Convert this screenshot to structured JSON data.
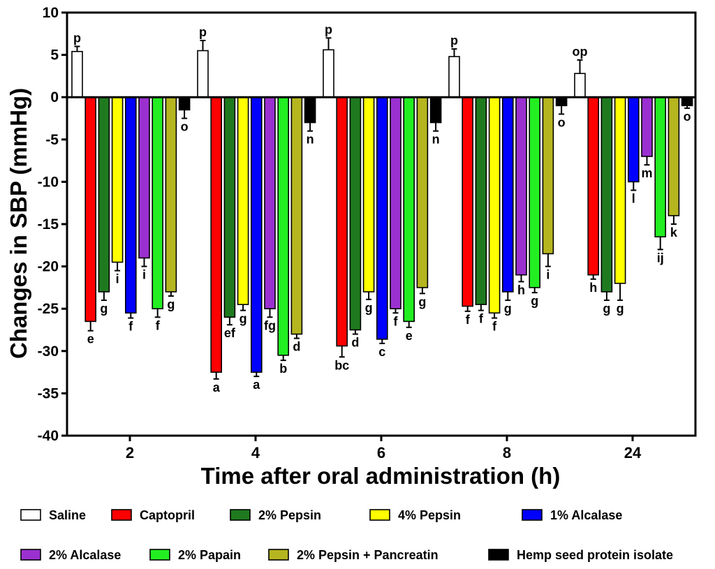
{
  "chart_data": {
    "type": "bar",
    "title": "",
    "xlabel": "Time after oral administration (h)",
    "ylabel": "Changes in SBP (mmHg)",
    "ylim": [
      -40,
      10
    ],
    "yticks": [
      10,
      5,
      0,
      -5,
      -10,
      -15,
      -20,
      -25,
      -30,
      -35,
      -40
    ],
    "categories": [
      "2",
      "4",
      "6",
      "8",
      "24"
    ],
    "series": [
      {
        "name": "Saline",
        "color": "#ffffff",
        "values": [
          5.4,
          5.5,
          5.6,
          4.8,
          2.8
        ],
        "errors": [
          0.6,
          1.2,
          1.4,
          0.9,
          1.6
        ],
        "letters": [
          "p",
          "p",
          "p",
          "p",
          "op"
        ]
      },
      {
        "name": "Captopril",
        "color": "#ff0000",
        "values": [
          -26.5,
          -32.5,
          -29.4,
          -24.7,
          -21.0
        ],
        "errors": [
          1.1,
          0.8,
          1.3,
          0.6,
          0.5
        ],
        "letters": [
          "e",
          "a",
          "bc",
          "f",
          "h"
        ]
      },
      {
        "name": "2% Pepsin",
        "color": "#1f7a1f",
        "values": [
          -23.0,
          -26.0,
          -27.5,
          -24.5,
          -23.0
        ],
        "errors": [
          1.0,
          0.9,
          0.5,
          0.7,
          1.0
        ],
        "letters": [
          "g",
          "ef",
          "d",
          "f",
          "g"
        ]
      },
      {
        "name": "4% Pepsin",
        "color": "#ffff00",
        "values": [
          -19.5,
          -24.5,
          -23.0,
          -25.5,
          -22.0
        ],
        "errors": [
          1.0,
          0.7,
          0.9,
          0.6,
          2.0
        ],
        "letters": [
          "i",
          "g",
          "g",
          "f",
          "g"
        ]
      },
      {
        "name": "1% Alcalase",
        "color": "#0000ff",
        "values": [
          -25.5,
          -32.5,
          -28.6,
          -23.0,
          -10.0
        ],
        "errors": [
          0.6,
          0.5,
          0.5,
          1.0,
          1.0
        ],
        "letters": [
          "f",
          "a",
          "c",
          "g",
          "l"
        ]
      },
      {
        "name": "2% Alcalase",
        "color": "#9b30d0",
        "values": [
          -19.0,
          -25.0,
          -25.0,
          -21.0,
          -7.0
        ],
        "errors": [
          1.0,
          1.0,
          0.5,
          0.8,
          1.0
        ],
        "letters": [
          "i",
          "fg",
          "f",
          "h",
          "m"
        ]
      },
      {
        "name": "2% Papain",
        "color": "#22ee22",
        "values": [
          -25.0,
          -30.5,
          -26.5,
          -22.5,
          -16.5
        ],
        "errors": [
          1.0,
          0.6,
          0.7,
          0.6,
          1.5
        ],
        "letters": [
          "f",
          "b",
          "e",
          "g",
          "ij"
        ]
      },
      {
        "name": "2% Pepsin + Pancreatin",
        "color": "#b5b51f",
        "values": [
          -23.0,
          -28.0,
          -22.5,
          -18.5,
          -14.0
        ],
        "errors": [
          0.5,
          0.5,
          0.7,
          1.5,
          1.0
        ],
        "letters": [
          "g",
          "d",
          "g",
          "i",
          "k"
        ]
      },
      {
        "name": "Hemp seed protein isolate",
        "color": "#000000",
        "values": [
          -1.5,
          -3.0,
          -3.0,
          -1.0,
          -1.0
        ],
        "errors": [
          1.0,
          1.0,
          1.0,
          1.0,
          0.3
        ],
        "letters": [
          "o",
          "n",
          "n",
          "o",
          "o"
        ]
      }
    ],
    "legend_position": "bottom"
  }
}
